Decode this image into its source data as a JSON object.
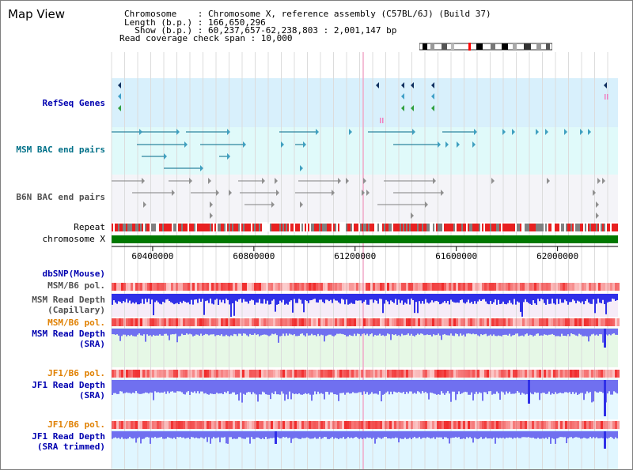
{
  "title": "Map View",
  "header": {
    "line1": "Chromosome    : Chromosome X, reference assembly (C57BL/6J) (Build 37)",
    "line2": "Length (b.p.) : 166,650,296",
    "line3": "  Show (b.p.) : 60,237,657-62,238,803 : 2,001,147 bp",
    "line4": "Read coverage check span : 10,000"
  },
  "tracks": {
    "refseq": "RefSeq Genes",
    "msm_bac": "MSM BAC end pairs",
    "b6n_bac": "B6N BAC end pairs",
    "repeat": "Repeat",
    "chromosome": "chromosome X",
    "dbsnp": "dbSNP(Mouse)",
    "msm_b6_pol_1": "MSM/B6 pol.",
    "msm_depth_cap_1": "MSM Read Depth",
    "msm_depth_cap_2": "(Capillary)",
    "msm_b6_pol_2": "MSM/B6 pol.",
    "msm_depth_sra_1": "MSM Read Depth",
    "msm_depth_sra_2": "(SRA)",
    "jf1_pol_1": "JF1/B6 pol.",
    "jf1_depth_sra_1": "JF1 Read Depth",
    "jf1_depth_sra_2": "(SRA)",
    "jf1_pol_2": "JF1/B6 pol.",
    "jf1_depth_trim_1": "JF1 Read Depth",
    "jf1_depth_trim_2": "(SRA trimmed)"
  },
  "axis": {
    "ticks": [
      "60400000",
      "60800000",
      "61200000",
      "61600000",
      "62000000"
    ],
    "tick_values": [
      60400000,
      60800000,
      61200000,
      61600000,
      62000000
    ],
    "start": 60237657,
    "end": 62238803
  },
  "colors": {
    "refseq_bg": "#d8f0fc",
    "bac_bg": "#e0fafa",
    "chromosome": "#007800",
    "depth_blue": "#3030e8",
    "depth_light": "#7070f0",
    "pol_red": "#ff2020"
  }
}
